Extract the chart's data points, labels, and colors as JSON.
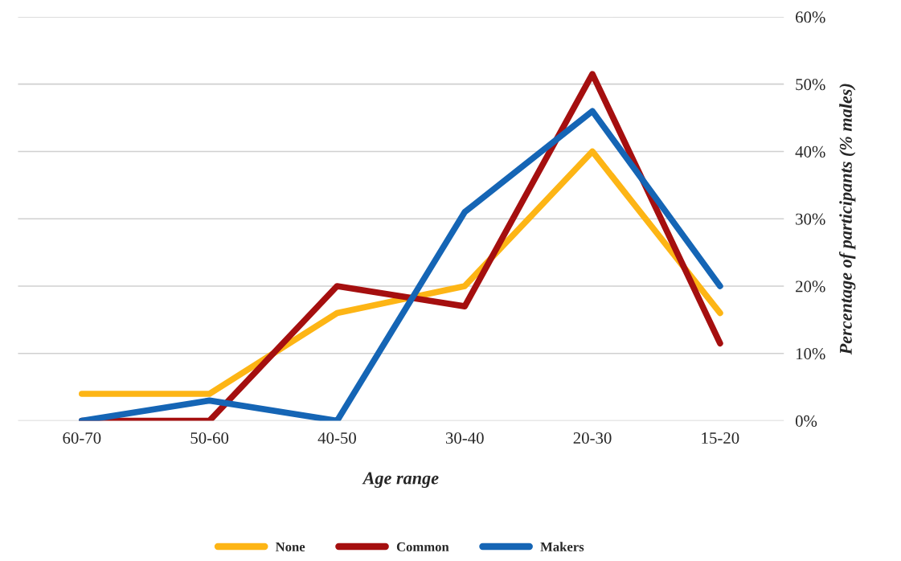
{
  "chart_data": {
    "type": "line",
    "categories": [
      "60-70",
      "50-60",
      "40-50",
      "30-40",
      "20-30",
      "15-20"
    ],
    "series": [
      {
        "name": "None",
        "color": "#fdb515",
        "values": [
          4,
          4,
          16,
          20,
          40,
          16
        ]
      },
      {
        "name": "Common",
        "color": "#a50f0f",
        "values": [
          0,
          0,
          20,
          17,
          51.5,
          11.5
        ]
      },
      {
        "name": "Makers",
        "color": "#1565b5",
        "values": [
          0,
          3,
          0,
          31,
          46,
          20
        ]
      }
    ],
    "xlabel": "Age range",
    "ylabel": "Percentage of participants (% males)",
    "ylim": [
      0,
      60
    ],
    "yticks": [
      {
        "value": 0,
        "label": "0%"
      },
      {
        "value": 10,
        "label": "10%"
      },
      {
        "value": 20,
        "label": "20%"
      },
      {
        "value": 30,
        "label": "30%"
      },
      {
        "value": 40,
        "label": "40%"
      },
      {
        "value": 50,
        "label": "50%"
      },
      {
        "value": 60,
        "label": "60%"
      }
    ],
    "grid": "y",
    "legend": "bottom",
    "marker": "none",
    "line_style": "solid"
  }
}
